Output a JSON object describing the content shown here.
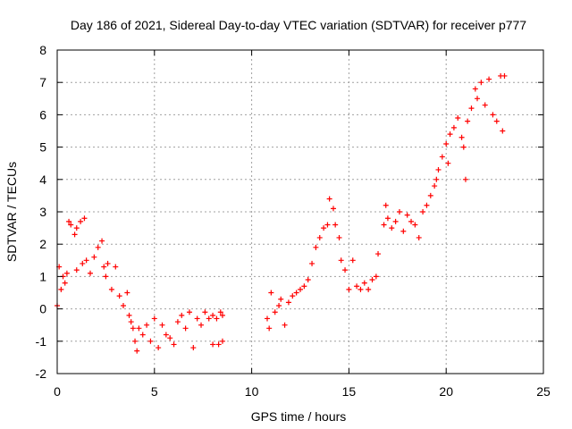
{
  "chart_data": {
    "type": "scatter",
    "title": "Day 186 of 2021, Sidereal Day-to-day VTEC variation (SDTVAR) for receiver p777",
    "xlabel": "GPS time / hours",
    "ylabel": "SDTVAR / TECUs",
    "xlim": [
      0,
      25
    ],
    "ylim": [
      -2,
      8
    ],
    "xticks": [
      0,
      5,
      10,
      15,
      20,
      25
    ],
    "yticks": [
      -2,
      -1,
      0,
      1,
      2,
      3,
      4,
      5,
      6,
      7,
      8
    ],
    "grid": true,
    "marker": "+",
    "color": "#ff0000",
    "series": [
      {
        "name": "segment-1",
        "points": [
          [
            0.0,
            0.1
          ],
          [
            0.1,
            1.3
          ],
          [
            0.2,
            0.6
          ],
          [
            0.3,
            1.0
          ],
          [
            0.4,
            0.8
          ],
          [
            0.5,
            1.1
          ],
          [
            0.6,
            2.7
          ],
          [
            0.7,
            2.6
          ],
          [
            0.9,
            2.3
          ],
          [
            1.0,
            2.5
          ],
          [
            1.2,
            2.7
          ],
          [
            1.4,
            2.8
          ],
          [
            1.0,
            1.2
          ],
          [
            1.3,
            1.4
          ],
          [
            1.5,
            1.5
          ],
          [
            1.7,
            1.1
          ],
          [
            1.9,
            1.6
          ],
          [
            2.1,
            1.9
          ],
          [
            2.3,
            2.1
          ],
          [
            2.4,
            1.3
          ],
          [
            2.5,
            1.0
          ],
          [
            2.6,
            1.4
          ],
          [
            2.8,
            0.6
          ],
          [
            3.0,
            1.3
          ],
          [
            3.2,
            0.4
          ],
          [
            3.4,
            0.1
          ],
          [
            3.6,
            0.5
          ],
          [
            3.7,
            -0.2
          ],
          [
            3.8,
            -0.4
          ],
          [
            3.9,
            -0.6
          ],
          [
            4.0,
            -1.0
          ],
          [
            4.1,
            -1.3
          ],
          [
            4.2,
            -0.6
          ],
          [
            4.4,
            -0.8
          ],
          [
            4.6,
            -0.5
          ],
          [
            4.8,
            -1.0
          ],
          [
            5.0,
            -0.3
          ],
          [
            5.2,
            -1.2
          ],
          [
            5.4,
            -0.5
          ],
          [
            5.6,
            -0.8
          ],
          [
            5.8,
            -0.9
          ],
          [
            6.0,
            -1.1
          ],
          [
            6.2,
            -0.4
          ],
          [
            6.4,
            -0.2
          ],
          [
            6.6,
            -0.6
          ],
          [
            6.8,
            -0.1
          ],
          [
            7.0,
            -1.2
          ],
          [
            7.2,
            -0.3
          ],
          [
            7.4,
            -0.5
          ],
          [
            7.6,
            -0.1
          ],
          [
            7.8,
            -0.3
          ],
          [
            8.0,
            -0.2
          ],
          [
            8.2,
            -0.3
          ],
          [
            8.4,
            -0.1
          ],
          [
            8.5,
            -0.2
          ],
          [
            8.0,
            -1.1
          ],
          [
            8.3,
            -1.1
          ],
          [
            8.5,
            -1.0
          ]
        ]
      },
      {
        "name": "segment-2",
        "points": [
          [
            10.8,
            -0.3
          ],
          [
            10.9,
            -0.6
          ],
          [
            11.0,
            0.5
          ],
          [
            11.2,
            -0.1
          ],
          [
            11.4,
            0.1
          ],
          [
            11.5,
            0.3
          ],
          [
            11.7,
            -0.5
          ],
          [
            11.9,
            0.2
          ],
          [
            12.1,
            0.4
          ],
          [
            12.3,
            0.5
          ],
          [
            12.5,
            0.6
          ],
          [
            12.7,
            0.7
          ],
          [
            12.9,
            0.9
          ],
          [
            13.1,
            1.4
          ],
          [
            13.3,
            1.9
          ],
          [
            13.5,
            2.2
          ],
          [
            13.7,
            2.5
          ],
          [
            13.9,
            2.6
          ],
          [
            14.0,
            3.4
          ],
          [
            14.2,
            3.1
          ],
          [
            14.3,
            2.6
          ],
          [
            14.5,
            2.2
          ],
          [
            14.6,
            1.5
          ],
          [
            14.8,
            1.2
          ],
          [
            15.0,
            0.6
          ],
          [
            15.2,
            1.5
          ],
          [
            15.4,
            0.7
          ],
          [
            15.6,
            0.6
          ],
          [
            15.8,
            0.8
          ],
          [
            16.0,
            0.6
          ],
          [
            16.2,
            0.9
          ],
          [
            16.4,
            1.0
          ],
          [
            16.5,
            1.7
          ],
          [
            16.8,
            2.6
          ],
          [
            16.9,
            3.2
          ],
          [
            17.0,
            2.8
          ],
          [
            17.2,
            2.5
          ],
          [
            17.4,
            2.7
          ],
          [
            17.6,
            3.0
          ],
          [
            17.8,
            2.4
          ],
          [
            18.0,
            2.9
          ],
          [
            18.2,
            2.7
          ],
          [
            18.4,
            2.6
          ],
          [
            18.6,
            2.2
          ],
          [
            18.8,
            3.0
          ],
          [
            19.0,
            3.2
          ],
          [
            19.2,
            3.5
          ],
          [
            19.4,
            3.8
          ],
          [
            19.5,
            4.0
          ],
          [
            19.6,
            4.3
          ],
          [
            19.8,
            4.7
          ],
          [
            20.0,
            5.1
          ],
          [
            20.1,
            4.5
          ],
          [
            20.2,
            5.4
          ],
          [
            20.4,
            5.6
          ],
          [
            20.6,
            5.9
          ],
          [
            20.8,
            5.3
          ],
          [
            20.9,
            5.0
          ],
          [
            21.0,
            4.0
          ],
          [
            21.1,
            5.8
          ],
          [
            21.3,
            6.2
          ],
          [
            21.5,
            6.8
          ],
          [
            21.6,
            6.5
          ],
          [
            21.8,
            7.0
          ],
          [
            22.0,
            6.3
          ],
          [
            22.2,
            7.1
          ],
          [
            22.4,
            6.0
          ],
          [
            22.6,
            5.8
          ],
          [
            22.8,
            7.2
          ],
          [
            22.9,
            5.5
          ],
          [
            23.0,
            7.2
          ]
        ]
      }
    ]
  }
}
